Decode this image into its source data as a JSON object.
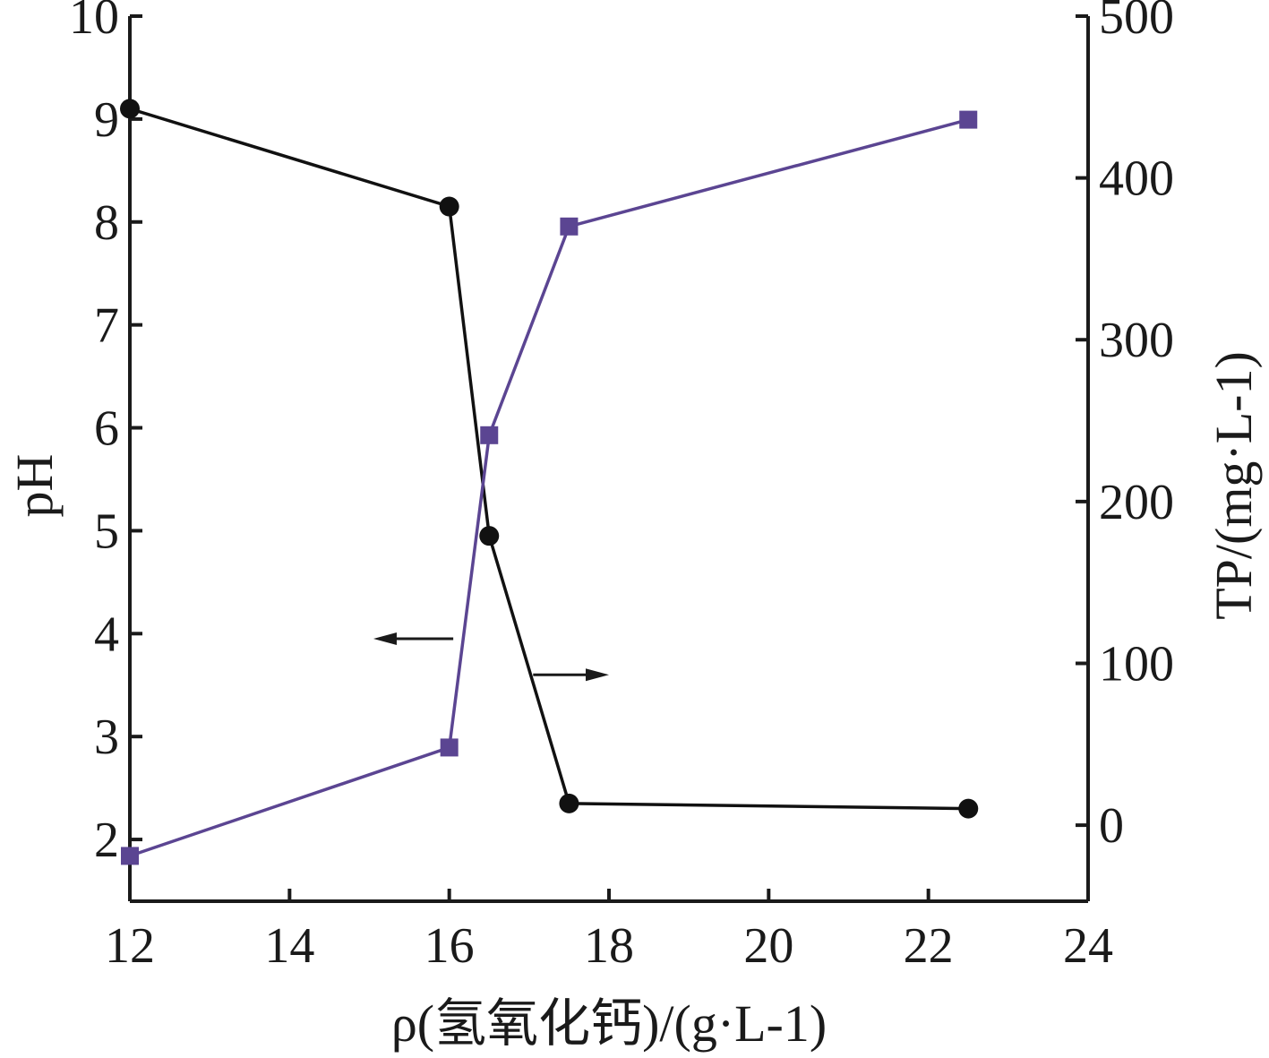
{
  "chart_data": {
    "type": "line",
    "x": [
      12,
      16,
      16.5,
      17.5,
      22.5
    ],
    "xlabel": "ρ(氢氧化钙)/(g·L-1)",
    "xlim": [
      12,
      24
    ],
    "xticks": [
      12,
      14,
      16,
      18,
      20,
      22,
      24
    ],
    "ylabel_left": "pH",
    "ylim_left": [
      1.4,
      10
    ],
    "yticks_left": [
      10,
      9,
      8,
      7,
      6,
      5,
      4,
      3,
      2
    ],
    "ylabel_right": "TP/(mg·L-1)",
    "ylim_right": [
      -47,
      500
    ],
    "yticks_right": [
      500,
      400,
      300,
      200,
      100,
      0
    ],
    "series": [
      {
        "axis": "left",
        "marker": "circle",
        "color": "#111111",
        "values": [
          9.1,
          8.15,
          4.95,
          2.35,
          2.3
        ]
      },
      {
        "axis": "right",
        "marker": "square",
        "color": "#5b4592",
        "values": [
          -19,
          48,
          241,
          370,
          436
        ]
      }
    ],
    "annotations": [
      {
        "type": "arrow",
        "direction": "left",
        "points_to": "left-axis",
        "from": [
          16.05,
          3.95
        ],
        "to": [
          15.05,
          3.95
        ]
      },
      {
        "type": "arrow",
        "direction": "right",
        "points_to": "right-axis",
        "from": [
          17.05,
          3.6
        ],
        "to": [
          18.0,
          3.6
        ]
      }
    ],
    "grid": false,
    "legend": "none",
    "title": ""
  }
}
